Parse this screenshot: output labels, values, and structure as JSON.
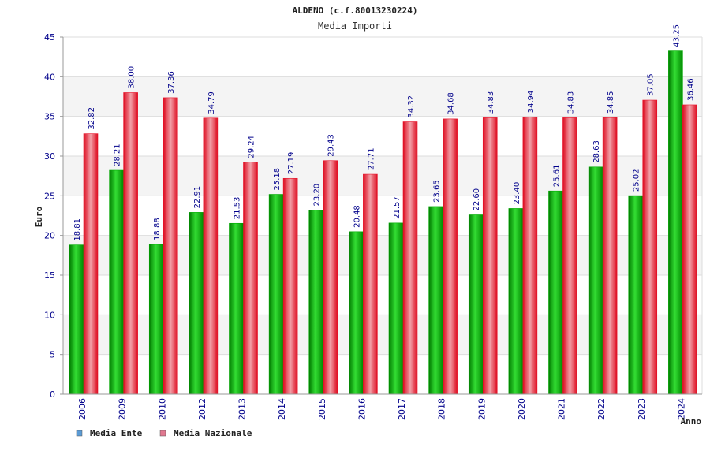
{
  "chart_data": {
    "type": "bar",
    "title": "ALDENO (c.f.80013230224)",
    "subtitle": "Media Importi",
    "ylabel": "Euro",
    "xlabel": "Anno",
    "ylim": [
      0,
      45
    ],
    "yticks": [
      "0",
      "5",
      "10",
      "15",
      "20",
      "25",
      "30",
      "35",
      "40",
      "45"
    ],
    "grid": true,
    "legend_position": "bottom-left",
    "categories": [
      "2006",
      "2009",
      "2010",
      "2012",
      "2013",
      "2014",
      "2015",
      "2016",
      "2017",
      "2018",
      "2019",
      "2020",
      "2021",
      "2022",
      "2023",
      "2024"
    ],
    "series": [
      {
        "name": "Media Ente",
        "color": "#00aa00",
        "legend_color": "#5b9bd5",
        "values": [
          18.81,
          28.21,
          18.88,
          22.91,
          21.53,
          25.18,
          23.2,
          20.48,
          21.57,
          23.65,
          22.6,
          23.4,
          25.61,
          28.63,
          25.02,
          43.25
        ],
        "labels": [
          "18.81",
          "28.21",
          "18.88",
          "22.91",
          "21.53",
          "25.18",
          "23.20",
          "20.48",
          "21.57",
          "23.65",
          "22.60",
          "23.40",
          "25.61",
          "28.63",
          "25.02",
          "43.25"
        ]
      },
      {
        "name": "Media Nazionale",
        "color": "#e8132a",
        "legend_color": "#e07890",
        "values": [
          32.82,
          38.0,
          37.36,
          34.79,
          29.24,
          27.19,
          29.43,
          27.71,
          34.32,
          34.68,
          34.83,
          34.94,
          34.83,
          34.85,
          37.05,
          36.46
        ],
        "labels": [
          "32.82",
          "38.00",
          "37.36",
          "34.79",
          "29.24",
          "27.19",
          "29.43",
          "27.71",
          "34.32",
          "34.68",
          "34.83",
          "34.94",
          "34.83",
          "34.85",
          "37.05",
          "36.46"
        ]
      }
    ]
  }
}
